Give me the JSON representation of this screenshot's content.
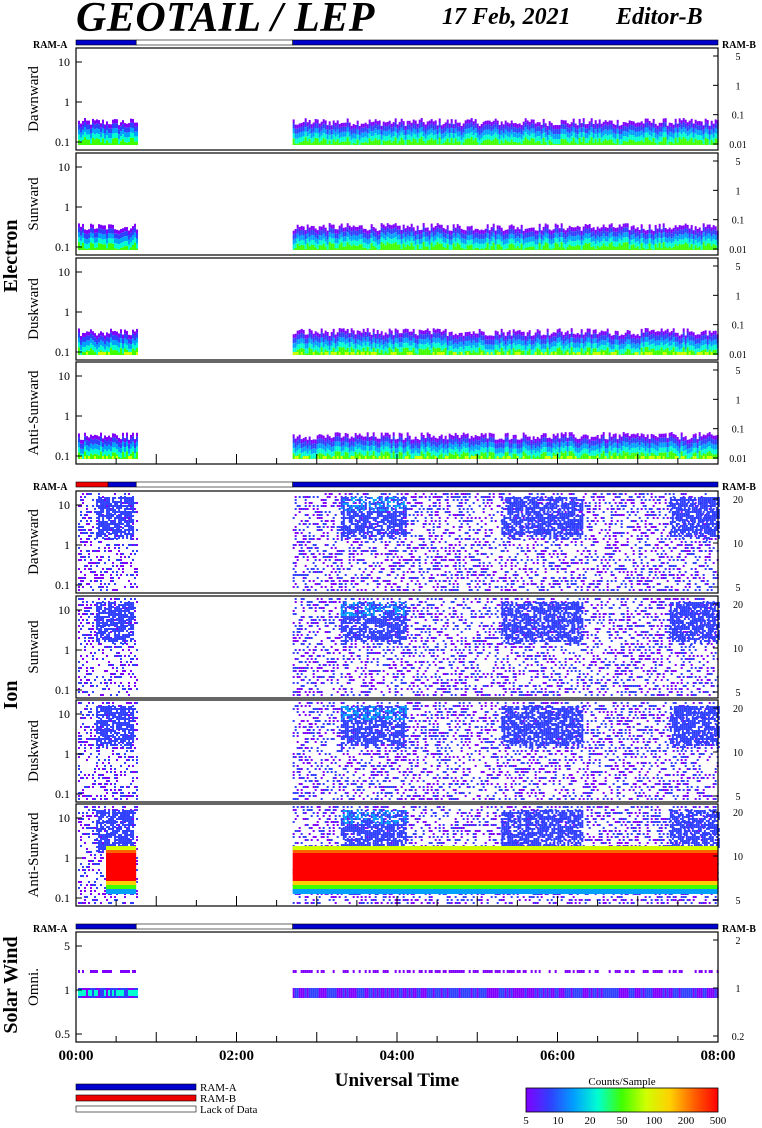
{
  "header": {
    "title": "GEOTAIL / LEP",
    "date": "17 Feb, 2021",
    "editor": "Editor-B"
  },
  "ram_labels": {
    "left": "RAM-A",
    "right": "RAM-B"
  },
  "x_axis": {
    "label": "Universal Time",
    "ticks": [
      "00:00",
      "02:00",
      "04:00",
      "06:00",
      "08:00"
    ],
    "range_hours": [
      0,
      8
    ]
  },
  "groups": [
    {
      "name": "Electron",
      "key": "electron"
    },
    {
      "name": "Ion",
      "key": "ion"
    },
    {
      "name": "Solar Wind",
      "key": "solarwind"
    }
  ],
  "legend": {
    "ram_a": "RAM-A",
    "ram_b": "RAM-B",
    "lack": "Lack of Data",
    "colorbar_title": "Counts/Sample",
    "colorbar_ticks": [
      "5",
      "10",
      "20",
      "50",
      "100",
      "200",
      "500"
    ]
  },
  "colors": {
    "ram_a": "#0000cc",
    "ram_b": "#ee0000",
    "colormap": [
      "#8000ff",
      "#3040ff",
      "#00a0ff",
      "#00ffd0",
      "#40ff00",
      "#d0ff00",
      "#ffd000",
      "#ff6000",
      "#ff0000"
    ]
  },
  "chart_data": [
    {
      "type": "heatmap",
      "group": "Electron",
      "ylabel": "Dawnward",
      "scale": "log",
      "left_ticks": [
        "10",
        "1",
        "0.1"
      ],
      "right_ticks": [
        "5",
        "1",
        "0.1",
        "0.01"
      ],
      "data_gap_hours": [
        0.75,
        2.7
      ],
      "dominant_level": "low-energy band 0.1-0.5"
    },
    {
      "type": "heatmap",
      "group": "Electron",
      "ylabel": "Sunward",
      "scale": "log",
      "left_ticks": [
        "10",
        "1",
        "0.1"
      ],
      "right_ticks": [
        "5",
        "1",
        "0.1",
        "0.01"
      ],
      "data_gap_hours": [
        0.75,
        2.7
      ]
    },
    {
      "type": "heatmap",
      "group": "Electron",
      "ylabel": "Duskward",
      "scale": "log",
      "left_ticks": [
        "10",
        "1",
        "0.1"
      ],
      "right_ticks": [
        "5",
        "1",
        "0.1",
        "0.01"
      ],
      "data_gap_hours": [
        0.75,
        2.7
      ]
    },
    {
      "type": "heatmap",
      "group": "Electron",
      "ylabel": "Anti-Sunward",
      "scale": "log",
      "left_ticks": [
        "10",
        "1",
        "0.1"
      ],
      "right_ticks": [
        "5",
        "1",
        "0.1",
        "0.01"
      ],
      "data_gap_hours": [
        0.75,
        2.7
      ]
    },
    {
      "type": "heatmap",
      "group": "Ion",
      "ylabel": "Dawnward",
      "scale": "log",
      "left_ticks": [
        "10",
        "1",
        "0.1"
      ],
      "right_ticks": [
        "20",
        "10",
        "5"
      ],
      "data_gap_hours": [
        0.75,
        2.7
      ]
    },
    {
      "type": "heatmap",
      "group": "Ion",
      "ylabel": "Sunward",
      "scale": "log",
      "left_ticks": [
        "10",
        "1",
        "0.1"
      ],
      "right_ticks": [
        "20",
        "10",
        "5"
      ],
      "data_gap_hours": [
        0.75,
        2.7
      ]
    },
    {
      "type": "heatmap",
      "group": "Ion",
      "ylabel": "Duskward",
      "scale": "log",
      "left_ticks": [
        "10",
        "1",
        "0.1"
      ],
      "right_ticks": [
        "20",
        "10",
        "5"
      ],
      "data_gap_hours": [
        0.75,
        2.7
      ]
    },
    {
      "type": "heatmap",
      "group": "Ion",
      "ylabel": "Anti-Sunward",
      "scale": "log",
      "left_ticks": [
        "10",
        "1",
        "0.1"
      ],
      "right_ticks": [
        "20",
        "10",
        "5"
      ],
      "data_gap_hours": [
        0.75,
        2.7
      ],
      "dominant_level": "solar-wind beam near 1 (red)"
    },
    {
      "type": "heatmap",
      "group": "Solar Wind",
      "ylabel": "Omni.",
      "scale": "log",
      "left_ticks": [
        "5",
        "1",
        "0.5"
      ],
      "right_ticks": [
        "2",
        "1",
        "0.2"
      ],
      "data_gap_hours": [
        0.75,
        2.7
      ]
    }
  ],
  "ram_bars": [
    {
      "segments": [
        {
          "from": 0,
          "to": 0.75,
          "mode": "ram_a"
        },
        {
          "from": 0.75,
          "to": 2.7,
          "mode": "lack"
        },
        {
          "from": 2.7,
          "to": 8,
          "mode": "ram_a"
        }
      ]
    },
    {
      "segments": [
        {
          "from": 0,
          "to": 0.4,
          "mode": "ram_b"
        },
        {
          "from": 0.4,
          "to": 0.75,
          "mode": "ram_a"
        },
        {
          "from": 0.75,
          "to": 2.7,
          "mode": "lack"
        },
        {
          "from": 2.7,
          "to": 8,
          "mode": "ram_a"
        }
      ]
    },
    {
      "segments": [
        {
          "from": 0,
          "to": 0.75,
          "mode": "ram_a"
        },
        {
          "from": 0.75,
          "to": 2.7,
          "mode": "lack"
        },
        {
          "from": 2.7,
          "to": 8,
          "mode": "ram_a"
        }
      ]
    }
  ]
}
